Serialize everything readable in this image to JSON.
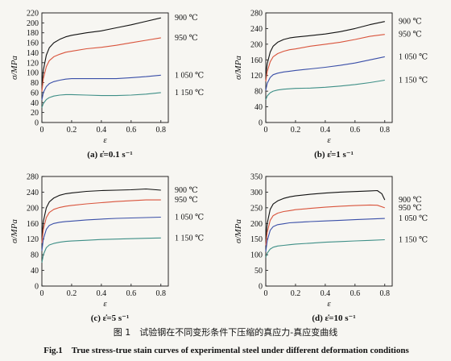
{
  "figure": {
    "caption_cn": "图 1　试验钢在不同变形条件下压缩的真应力-真应变曲线",
    "caption_en": "Fig.1　True stress-true stain curves of experimental steel under different deformation conditions"
  },
  "chart_data": [
    {
      "type": "line",
      "caption": "(a) ε̇=0.1 s⁻¹",
      "xlabel": "ε",
      "ylabel": "σ/MPa",
      "xlim": [
        0,
        0.85
      ],
      "ylim": [
        0,
        220
      ],
      "xticks": [
        "0",
        "0.2",
        "0.4",
        "0.6",
        "0.8"
      ],
      "yticks": [
        "0",
        "20",
        "40",
        "60",
        "80",
        "100",
        "120",
        "140",
        "160",
        "180",
        "200",
        "220"
      ],
      "series": [
        {
          "name": "900 ℃",
          "color": "#111111",
          "x": [
            0,
            0.01,
            0.03,
            0.05,
            0.08,
            0.12,
            0.16,
            0.2,
            0.3,
            0.4,
            0.5,
            0.6,
            0.7,
            0.8
          ],
          "y": [
            75,
            105,
            135,
            150,
            160,
            167,
            172,
            175,
            180,
            184,
            190,
            196,
            203,
            210
          ]
        },
        {
          "name": "950 ℃",
          "color": "#d9543c",
          "x": [
            0,
            0.01,
            0.03,
            0.05,
            0.08,
            0.12,
            0.16,
            0.2,
            0.3,
            0.4,
            0.5,
            0.6,
            0.7,
            0.8
          ],
          "y": [
            62,
            88,
            112,
            124,
            132,
            137,
            141,
            143,
            148,
            151,
            155,
            160,
            165,
            170
          ]
        },
        {
          "name": "1 050 ℃",
          "color": "#3a4fa8",
          "x": [
            0,
            0.01,
            0.03,
            0.05,
            0.08,
            0.12,
            0.16,
            0.2,
            0.3,
            0.4,
            0.5,
            0.6,
            0.7,
            0.8
          ],
          "y": [
            45,
            60,
            72,
            78,
            82,
            85,
            87,
            88,
            88,
            88,
            88,
            90,
            92,
            95
          ]
        },
        {
          "name": "1 150 ℃",
          "color": "#3e8f87",
          "x": [
            0,
            0.01,
            0.03,
            0.05,
            0.08,
            0.12,
            0.16,
            0.2,
            0.3,
            0.4,
            0.5,
            0.6,
            0.7,
            0.8
          ],
          "y": [
            30,
            38,
            46,
            50,
            53,
            55,
            56,
            56,
            55,
            54,
            54,
            55,
            57,
            60
          ]
        }
      ]
    },
    {
      "type": "line",
      "caption": "(b) ε̇=1 s⁻¹",
      "xlabel": "ε",
      "ylabel": "σ/MPa",
      "xlim": [
        0,
        0.85
      ],
      "ylim": [
        0,
        280
      ],
      "xticks": [
        "0",
        "0.2",
        "0.4",
        "0.6",
        "0.8"
      ],
      "yticks": [
        "0",
        "40",
        "80",
        "120",
        "160",
        "200",
        "240",
        "280"
      ],
      "series": [
        {
          "name": "900 ℃",
          "color": "#111111",
          "x": [
            0,
            0.01,
            0.03,
            0.05,
            0.08,
            0.12,
            0.16,
            0.2,
            0.3,
            0.4,
            0.5,
            0.6,
            0.7,
            0.8
          ],
          "y": [
            120,
            150,
            180,
            195,
            205,
            212,
            216,
            218,
            222,
            226,
            232,
            240,
            250,
            258
          ]
        },
        {
          "name": "950 ℃",
          "color": "#d9543c",
          "x": [
            0,
            0.01,
            0.03,
            0.05,
            0.08,
            0.12,
            0.16,
            0.2,
            0.3,
            0.4,
            0.5,
            0.6,
            0.7,
            0.8
          ],
          "y": [
            105,
            130,
            155,
            168,
            176,
            182,
            186,
            188,
            195,
            200,
            205,
            212,
            220,
            225
          ]
        },
        {
          "name": "1 050 ℃",
          "color": "#3a4fa8",
          "x": [
            0,
            0.01,
            0.03,
            0.05,
            0.08,
            0.12,
            0.16,
            0.2,
            0.3,
            0.4,
            0.5,
            0.6,
            0.7,
            0.8
          ],
          "y": [
            82,
            100,
            115,
            122,
            126,
            129,
            131,
            133,
            137,
            141,
            146,
            152,
            160,
            168
          ]
        },
        {
          "name": "1 150 ℃",
          "color": "#3e8f87",
          "x": [
            0,
            0.01,
            0.03,
            0.05,
            0.08,
            0.12,
            0.16,
            0.2,
            0.3,
            0.4,
            0.5,
            0.6,
            0.7,
            0.8
          ],
          "y": [
            58,
            68,
            76,
            80,
            83,
            85,
            86,
            87,
            88,
            90,
            93,
            97,
            102,
            108
          ]
        }
      ]
    },
    {
      "type": "line",
      "caption": "(c) ε̇=5 s⁻¹",
      "xlabel": "ε",
      "ylabel": "σ/MPa",
      "xlim": [
        0,
        0.85
      ],
      "ylim": [
        0,
        280
      ],
      "xticks": [
        "0",
        "0.2",
        "0.4",
        "0.6",
        "0.8"
      ],
      "yticks": [
        "0",
        "40",
        "80",
        "120",
        "160",
        "200",
        "240",
        "280"
      ],
      "series": [
        {
          "name": "900 ℃",
          "color": "#111111",
          "x": [
            0,
            0.01,
            0.03,
            0.05,
            0.08,
            0.12,
            0.16,
            0.2,
            0.3,
            0.4,
            0.5,
            0.6,
            0.7,
            0.8
          ],
          "y": [
            125,
            165,
            200,
            215,
            225,
            232,
            236,
            238,
            242,
            244,
            245,
            246,
            248,
            245
          ]
        },
        {
          "name": "950 ℃",
          "color": "#d9543c",
          "x": [
            0,
            0.01,
            0.03,
            0.05,
            0.08,
            0.12,
            0.16,
            0.2,
            0.3,
            0.4,
            0.5,
            0.6,
            0.7,
            0.8
          ],
          "y": [
            110,
            145,
            175,
            188,
            196,
            201,
            204,
            206,
            210,
            213,
            216,
            218,
            220,
            220
          ]
        },
        {
          "name": "1 050 ℃",
          "color": "#3a4fa8",
          "x": [
            0,
            0.01,
            0.03,
            0.05,
            0.08,
            0.12,
            0.16,
            0.2,
            0.3,
            0.4,
            0.5,
            0.6,
            0.7,
            0.8
          ],
          "y": [
            90,
            120,
            145,
            155,
            160,
            163,
            165,
            166,
            169,
            171,
            173,
            174,
            175,
            176
          ]
        },
        {
          "name": "1 150 ℃",
          "color": "#3e8f87",
          "x": [
            0,
            0.01,
            0.03,
            0.05,
            0.08,
            0.12,
            0.16,
            0.2,
            0.3,
            0.4,
            0.5,
            0.6,
            0.7,
            0.8
          ],
          "y": [
            60,
            80,
            98,
            105,
            109,
            112,
            114,
            115,
            117,
            119,
            120,
            121,
            122,
            123
          ]
        }
      ]
    },
    {
      "type": "line",
      "caption": "(d) ε̇=10 s⁻¹",
      "xlabel": "ε",
      "ylabel": "σ/MPa",
      "xlim": [
        0,
        0.85
      ],
      "ylim": [
        0,
        350
      ],
      "xticks": [
        "0",
        "0.2",
        "0.4",
        "0.6",
        "0.8"
      ],
      "yticks": [
        "0",
        "50",
        "100",
        "150",
        "200",
        "250",
        "300",
        "350"
      ],
      "series": [
        {
          "name": "900 ℃",
          "color": "#111111",
          "x": [
            0,
            0.01,
            0.03,
            0.05,
            0.08,
            0.12,
            0.16,
            0.2,
            0.3,
            0.4,
            0.5,
            0.6,
            0.7,
            0.75,
            0.78,
            0.8
          ],
          "y": [
            150,
            200,
            245,
            262,
            272,
            280,
            285,
            288,
            293,
            297,
            300,
            302,
            304,
            305,
            295,
            275
          ]
        },
        {
          "name": "950 ℃",
          "color": "#d9543c",
          "x": [
            0,
            0.01,
            0.03,
            0.05,
            0.08,
            0.12,
            0.16,
            0.2,
            0.3,
            0.4,
            0.5,
            0.6,
            0.7,
            0.75,
            0.8
          ],
          "y": [
            130,
            172,
            210,
            225,
            233,
            238,
            241,
            244,
            248,
            252,
            255,
            257,
            259,
            258,
            250
          ]
        },
        {
          "name": "1 050 ℃",
          "color": "#3a4fa8",
          "x": [
            0,
            0.01,
            0.03,
            0.05,
            0.08,
            0.12,
            0.16,
            0.2,
            0.3,
            0.4,
            0.5,
            0.6,
            0.7,
            0.8
          ],
          "y": [
            110,
            145,
            178,
            190,
            196,
            199,
            202,
            203,
            206,
            208,
            210,
            212,
            214,
            216
          ]
        },
        {
          "name": "1 150 ℃",
          "color": "#3e8f87",
          "x": [
            0,
            0.01,
            0.03,
            0.05,
            0.08,
            0.12,
            0.16,
            0.2,
            0.3,
            0.4,
            0.5,
            0.6,
            0.7,
            0.8
          ],
          "y": [
            92,
            105,
            118,
            124,
            128,
            130,
            132,
            134,
            137,
            140,
            142,
            144,
            146,
            148
          ]
        }
      ]
    }
  ]
}
